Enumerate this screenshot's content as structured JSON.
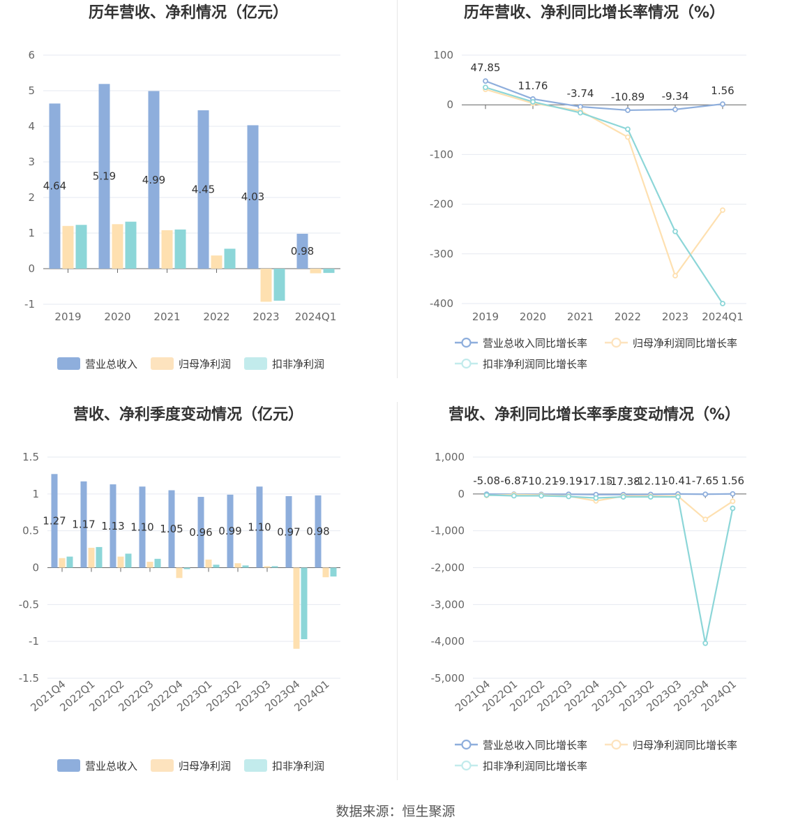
{
  "source": "数据来源：恒生聚源",
  "colors": {
    "revenue": "#8eaedc",
    "netprofit": "#fee0b0",
    "deducted": "#8cd6d8",
    "revenue_legend": "#8eaedc",
    "netprofit_legend": "#fde3be",
    "deducted_legend": "#c2ebec",
    "grid": "#e6e9f0",
    "axis": "#666666"
  },
  "chart_data": [
    {
      "id": "annual_bar",
      "type": "bar",
      "title": "历年营收、净利情况（亿元）",
      "categories": [
        "2019",
        "2020",
        "2021",
        "2022",
        "2023",
        "2024Q1"
      ],
      "ylim": [
        -1,
        6
      ],
      "yticks": [
        "6",
        "5",
        "4",
        "3",
        "2",
        "1",
        "0",
        "-1"
      ],
      "ytick_values": [
        6,
        5,
        4,
        3,
        2,
        1,
        0,
        -1
      ],
      "series": [
        {
          "name": "营业总收入",
          "values": [
            4.64,
            5.19,
            4.99,
            4.45,
            4.03,
            0.98
          ],
          "labels": [
            "4.64",
            "5.19",
            "4.99",
            "4.45",
            "4.03",
            "0.98"
          ]
        },
        {
          "name": "归母净利润",
          "values": [
            1.2,
            1.25,
            1.08,
            0.37,
            -0.93,
            -0.13
          ]
        },
        {
          "name": "扣非净利润",
          "values": [
            1.23,
            1.32,
            1.1,
            0.56,
            -0.9,
            -0.12
          ]
        }
      ]
    },
    {
      "id": "annual_line",
      "type": "line",
      "title": "历年营收、净利同比增长率情况（%）",
      "categories": [
        "2019",
        "2020",
        "2021",
        "2022",
        "2023",
        "2024Q1"
      ],
      "ylim": [
        -400,
        100
      ],
      "yticks": [
        "100",
        "0",
        "-100",
        "-200",
        "-300",
        "-400"
      ],
      "ytick_values": [
        100,
        0,
        -100,
        -200,
        -300,
        -400
      ],
      "series": [
        {
          "name": "营业总收入同比增长率",
          "values": [
            47.85,
            11.76,
            -3.74,
            -10.89,
            -9.34,
            1.56
          ],
          "labels": [
            "47.85",
            "11.76",
            "-3.74",
            "-10.89",
            "-9.34",
            "1.56"
          ]
        },
        {
          "name": "归母净利润同比增长率",
          "values": [
            31,
            3,
            -12,
            -65,
            -344,
            -212
          ]
        },
        {
          "name": "扣非净利润同比增长率",
          "values": [
            35,
            6,
            -16,
            -49,
            -255,
            -400
          ]
        }
      ]
    },
    {
      "id": "quarter_bar",
      "type": "bar",
      "title": "营收、净利季度变动情况（亿元）",
      "categories": [
        "2021Q4",
        "2022Q1",
        "2022Q2",
        "2022Q3",
        "2022Q4",
        "2023Q1",
        "2023Q2",
        "2023Q3",
        "2023Q4",
        "2024Q1"
      ],
      "ylim": [
        -1.5,
        1.5
      ],
      "yticks": [
        "1.5",
        "1",
        "0.5",
        "0",
        "-0.5",
        "-1",
        "-1.5"
      ],
      "ytick_values": [
        1.5,
        1,
        0.5,
        0,
        -0.5,
        -1,
        -1.5
      ],
      "series": [
        {
          "name": "营业总收入",
          "values": [
            1.27,
            1.17,
            1.13,
            1.1,
            1.05,
            0.96,
            0.99,
            1.1,
            0.97,
            0.98
          ],
          "labels": [
            "1.27",
            "1.17",
            "1.13",
            "1.10",
            "1.05",
            "0.96",
            "0.99",
            "1.10",
            "0.97",
            "0.98"
          ]
        },
        {
          "name": "归母净利润",
          "values": [
            0.13,
            0.27,
            0.15,
            0.08,
            -0.14,
            0.11,
            0.06,
            0.02,
            -1.1,
            -0.13
          ]
        },
        {
          "name": "扣非净利润",
          "values": [
            0.15,
            0.28,
            0.19,
            0.12,
            -0.02,
            0.04,
            0.03,
            0.02,
            -0.97,
            -0.12
          ]
        }
      ]
    },
    {
      "id": "quarter_line",
      "type": "line",
      "title": "营收、净利同比增长率季度变动情况（%）",
      "categories": [
        "2021Q4",
        "2022Q1",
        "2022Q2",
        "2022Q3",
        "2022Q4",
        "2023Q1",
        "2023Q2",
        "2023Q3",
        "2023Q4",
        "2024Q1"
      ],
      "ylim": [
        -5000,
        1000
      ],
      "yticks": [
        "1,000",
        "0",
        "-1,000",
        "-2,000",
        "-3,000",
        "-4,000",
        "-5,000"
      ],
      "ytick_values": [
        1000,
        0,
        -1000,
        -2000,
        -3000,
        -4000,
        -5000
      ],
      "series": [
        {
          "name": "营业总收入同比增长率",
          "values": [
            -5.08,
            -6.87,
            -10.21,
            -9.19,
            -17.15,
            -17.38,
            -12.11,
            -0.41,
            -7.65,
            1.56
          ],
          "labels": [
            "-5.08",
            "-6.87",
            "-10.21",
            "-9.19",
            "-17.15",
            "-17.38",
            "-12.11",
            "-0.41",
            "-7.65",
            "1.56"
          ]
        },
        {
          "name": "归母净利润同比增长率",
          "values": [
            -40,
            -20,
            -30,
            -60,
            -190,
            -60,
            -60,
            -60,
            -690,
            -200
          ]
        },
        {
          "name": "扣非净利润同比增长率",
          "values": [
            -30,
            -50,
            -50,
            -70,
            -110,
            -80,
            -80,
            -80,
            -4050,
            -390
          ]
        }
      ]
    }
  ]
}
